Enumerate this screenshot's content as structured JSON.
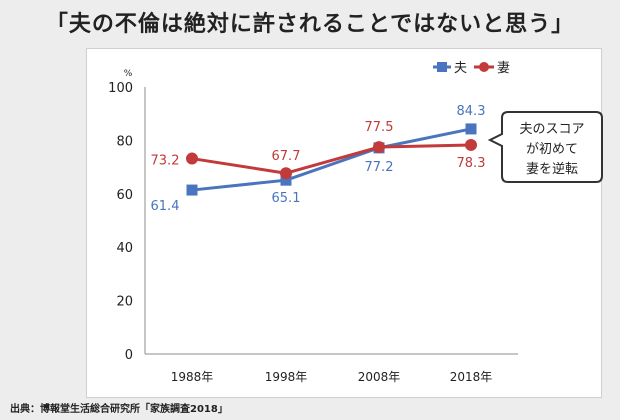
{
  "page": {
    "title": "「夫の不倫は絶対に許されることではないと思う」",
    "source": "出典：博報堂生活総合研究所「家族調査2018」"
  },
  "chart_data": {
    "type": "line",
    "categories": [
      "1988年",
      "1998年",
      "2008年",
      "2018年"
    ],
    "ylabel": "%",
    "ylim": [
      0,
      100
    ],
    "yticks": [
      0,
      20,
      40,
      60,
      80,
      100
    ],
    "grid": "none",
    "legend": "top-right",
    "series": [
      {
        "name": "夫",
        "color": "#4a74be",
        "marker": "square",
        "values": [
          61.4,
          65.1,
          77.2,
          84.3
        ]
      },
      {
        "name": "妻",
        "color": "#c23a3a",
        "marker": "circle",
        "values": [
          73.2,
          67.7,
          77.5,
          78.3
        ]
      }
    ],
    "annotation": {
      "lines": [
        "夫のスコア",
        "が初めて",
        "妻を逆転"
      ]
    }
  }
}
